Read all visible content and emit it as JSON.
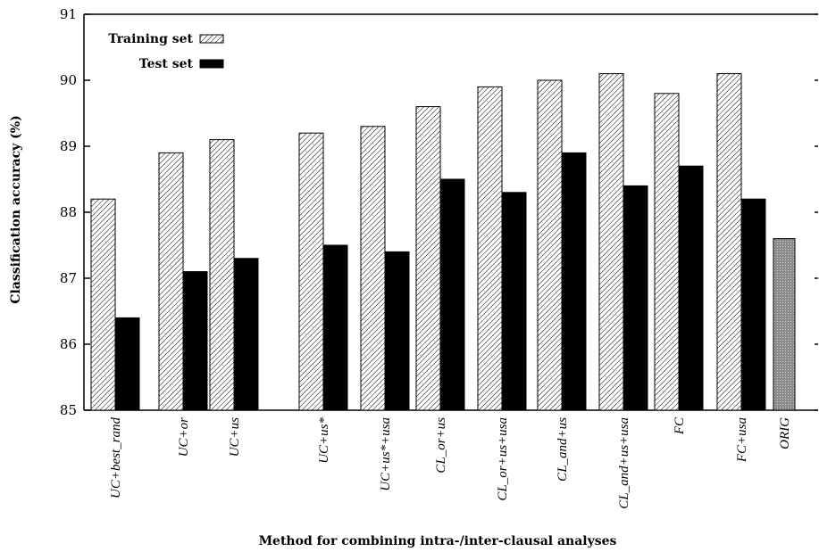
{
  "chart_data": {
    "type": "bar",
    "categories": [
      "UC+best_rand",
      "UC+or",
      "UC+us",
      "UC+us*",
      "UC+us*+usa",
      "CL_or+us",
      "CL_or+us+usa",
      "CL_and+us",
      "CL_and+us+usa",
      "FC",
      "FC+usa",
      "ORIG"
    ],
    "series": [
      {
        "name": "Training set",
        "values": [
          88.2,
          88.9,
          89.1,
          89.2,
          89.3,
          89.6,
          89.9,
          90.0,
          90.1,
          89.8,
          90.1,
          null
        ]
      },
      {
        "name": "Test set",
        "values": [
          86.4,
          87.1,
          87.3,
          87.5,
          87.4,
          88.5,
          88.3,
          88.9,
          88.4,
          88.7,
          88.2,
          null
        ]
      }
    ],
    "reference": {
      "category": "ORIG",
      "value": 87.6
    },
    "xlabel": "Method for combining intra-/inter-clausal analyses",
    "ylabel": "Classification accuracy (%)",
    "ylim": [
      85,
      91
    ],
    "yticks": [
      85,
      86,
      87,
      88,
      89,
      90,
      91
    ],
    "legend_position": "top-left",
    "grid": false,
    "colors": {
      "training": "#ffffff",
      "test": "#000000",
      "orig": "#9a9a9a"
    }
  }
}
